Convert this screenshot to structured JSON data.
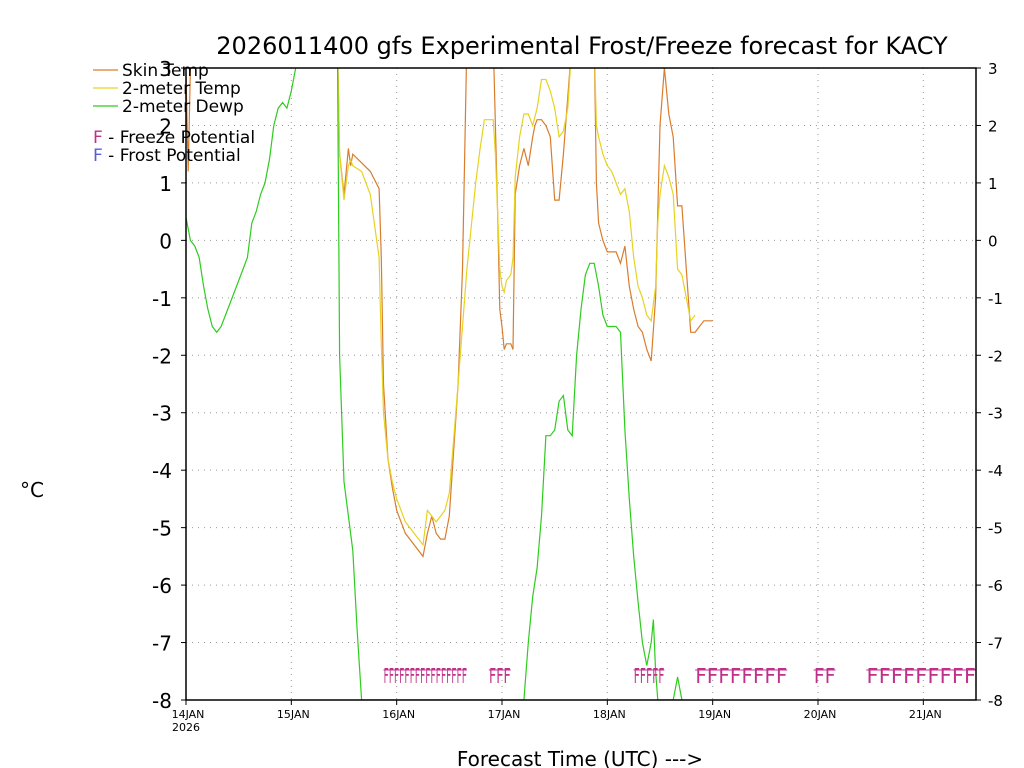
{
  "chart_data": {
    "type": "line",
    "title": "2026011400 gfs Experimental Frost/Freeze forecast for KACY",
    "xlabel": "Forecast Time (UTC) --->",
    "ylabel": "°C",
    "ylim": [
      -8,
      3
    ],
    "xlim_hours": [
      0,
      180
    ],
    "grid": true,
    "yticks": [
      "-8",
      "-7",
      "-6",
      "-5",
      "-4",
      "-3",
      "-2",
      "-1",
      "0",
      "1",
      "2",
      "3"
    ],
    "xticks": [
      {
        "label": "14JAN",
        "sub": "2026",
        "hour": 0
      },
      {
        "label": "15JAN",
        "sub": "",
        "hour": 24
      },
      {
        "label": "16JAN",
        "sub": "",
        "hour": 48
      },
      {
        "label": "17JAN",
        "sub": "",
        "hour": 72
      },
      {
        "label": "18JAN",
        "sub": "",
        "hour": 96
      },
      {
        "label": "19JAN",
        "sub": "",
        "hour": 120
      },
      {
        "label": "20JAN",
        "sub": "",
        "hour": 144
      },
      {
        "label": "21JAN",
        "sub": "",
        "hour": 168
      }
    ],
    "legend": [
      {
        "label": "Skin Temp",
        "color": "#d97d2d"
      },
      {
        "label": "2-meter Temp",
        "color": "#e6d320"
      },
      {
        "label": "2-meter Dewp",
        "color": "#2ecc1e"
      }
    ],
    "potential_legend": [
      {
        "letter": "F",
        "text": " - Freeze Potential",
        "color": "#c0308a"
      },
      {
        "letter": "F",
        "text": " - Frost Potential",
        "color": "#5a5adc"
      }
    ],
    "series": [
      {
        "name": "Skin Temp",
        "color": "#d97d2d",
        "x": [
          0,
          0.5,
          1,
          2,
          34.5,
          35,
          36,
          37,
          37.5,
          38,
          40,
          42,
          44,
          44.5,
          45,
          46,
          47,
          48,
          50,
          52,
          54,
          55,
          56,
          57,
          58,
          59,
          60,
          62,
          63,
          63.5,
          64,
          65,
          66,
          68,
          70,
          71,
          71.5,
          72,
          72.5,
          73,
          74,
          74.5,
          75,
          76,
          77,
          78,
          79,
          79.5,
          80,
          81,
          82,
          83,
          84,
          85,
          86,
          88,
          89,
          90,
          91,
          92,
          93,
          93.5,
          94,
          95,
          96,
          97,
          98,
          99,
          100,
          101,
          102,
          103,
          104,
          105,
          106,
          107,
          107.5,
          108,
          109,
          110,
          111,
          112,
          113,
          114,
          115,
          116,
          117,
          118,
          119,
          120
        ],
        "y": [
          2.9,
          1.2,
          3,
          3.5,
          3.5,
          1.5,
          0.8,
          1.6,
          1.3,
          1.5,
          1.35,
          1.2,
          0.9,
          -0.3,
          -2.5,
          -3.8,
          -4.3,
          -4.7,
          -5.1,
          -5.3,
          -5.5,
          -5.1,
          -4.8,
          -5.1,
          -5.2,
          -5.2,
          -4.8,
          -2.5,
          -0.5,
          1.5,
          3.5,
          3.5,
          3.5,
          3.5,
          3.5,
          0.5,
          -1.2,
          -1.5,
          -1.9,
          -1.8,
          -1.8,
          -1.9,
          0.8,
          1.3,
          1.6,
          1.3,
          1.8,
          2,
          2.1,
          2.1,
          2,
          1.8,
          0.7,
          0.7,
          1.5,
          3.5,
          3.5,
          3.5,
          3.5,
          3.5,
          3.5,
          1.0,
          0.3,
          0,
          -0.2,
          -0.2,
          -0.2,
          -0.4,
          -0.1,
          -0.8,
          -1.2,
          -1.5,
          -1.6,
          -1.9,
          -2.1,
          -1.0,
          0.5,
          2,
          3,
          2.2,
          1.8,
          0.6,
          0.6,
          -0.5,
          -1.6,
          -1.6,
          -1.5,
          -1.4,
          -1.4,
          -1.4
        ],
        "trace": false
      },
      {
        "name": "2-meter Temp",
        "color": "#e6d320",
        "x": [
          34.5,
          35,
          36,
          37,
          37.5,
          38,
          40,
          42,
          44,
          44.5,
          45,
          46,
          47,
          48,
          50,
          52,
          54,
          55,
          56,
          57,
          58,
          59,
          60,
          62,
          64,
          66,
          67,
          68,
          70,
          70.5,
          71,
          71.5,
          72,
          72.5,
          73,
          74,
          74.5,
          75,
          76,
          77,
          78,
          79,
          80,
          81,
          82,
          83,
          84,
          85,
          86,
          87,
          88,
          89,
          90,
          91,
          92,
          93,
          93.5,
          94,
          95,
          96,
          97,
          98,
          99,
          100,
          101,
          102,
          103,
          104,
          105,
          106,
          107,
          107.5,
          108,
          109,
          110,
          111,
          112,
          113,
          114,
          115,
          116
        ],
        "y": [
          3.5,
          1.5,
          0.7,
          1.3,
          1.4,
          1.3,
          1.2,
          0.8,
          -0.3,
          -1.8,
          -3.0,
          -3.8,
          -4.2,
          -4.5,
          -4.9,
          -5.1,
          -5.3,
          -4.7,
          -4.8,
          -4.9,
          -4.8,
          -4.7,
          -4.4,
          -2.5,
          -0.5,
          1.0,
          1.6,
          2.1,
          2.1,
          1.5,
          0.5,
          -0.5,
          -0.8,
          -0.9,
          -0.7,
          -0.6,
          -0.3,
          1.1,
          1.8,
          2.2,
          2.2,
          2.0,
          2.3,
          2.8,
          2.8,
          2.6,
          2.3,
          1.8,
          1.9,
          2.3,
          3.5,
          3.5,
          3.5,
          3.5,
          3.5,
          3.5,
          2.0,
          1.8,
          1.5,
          1.3,
          1.2,
          1.0,
          0.8,
          0.9,
          0.5,
          -0.3,
          -0.8,
          -1.0,
          -1.3,
          -1.4,
          -0.8,
          0.3,
          0.8,
          1.3,
          1.1,
          0.8,
          -0.5,
          -0.6,
          -1.0,
          -1.4,
          -1.3
        ],
        "trace": false
      },
      {
        "name": "2-meter Dewp",
        "color": "#2ecc1e",
        "x": [
          0,
          1,
          2,
          3,
          4,
          5,
          6,
          7,
          8,
          9,
          10,
          12,
          14,
          15,
          16,
          17,
          18,
          19,
          20,
          21,
          22,
          23,
          24,
          25,
          26,
          27,
          34.5,
          35,
          36,
          37,
          38,
          39,
          40,
          41,
          42,
          76,
          77,
          78,
          79,
          80,
          81,
          82,
          83,
          84,
          85,
          86,
          87,
          88,
          89,
          90,
          91,
          92,
          93,
          94,
          95,
          96,
          97,
          98,
          99,
          100,
          101,
          102,
          103,
          104,
          105,
          106,
          106.5,
          107,
          107.5,
          108,
          108.5,
          109,
          110,
          111,
          112,
          113
        ],
        "y": [
          0.4,
          0,
          -0.1,
          -0.3,
          -0.8,
          -1.2,
          -1.5,
          -1.6,
          -1.5,
          -1.3,
          -1.1,
          -0.7,
          -0.3,
          0.3,
          0.5,
          0.8,
          1.0,
          1.4,
          2.0,
          2.3,
          2.4,
          2.3,
          2.6,
          3.0,
          3.2,
          3.5,
          3.5,
          -2.0,
          -4.2,
          -4.8,
          -5.4,
          -6.8,
          -8.0,
          -8.0,
          -8.0,
          -8.0,
          -8.0,
          -7.0,
          -6.2,
          -5.7,
          -4.8,
          -3.4,
          -3.4,
          -3.3,
          -2.8,
          -2.7,
          -3.3,
          -3.4,
          -2.0,
          -1.2,
          -0.6,
          -0.4,
          -0.4,
          -0.8,
          -1.3,
          -1.5,
          -1.5,
          -1.5,
          -1.6,
          -3.3,
          -4.5,
          -5.5,
          -6.3,
          -7.0,
          -7.4,
          -7.0,
          -6.6,
          -7.5,
          -8.0,
          -8.0,
          -8.0,
          -8.0,
          -8.0,
          -8.0,
          -7.6,
          -8.0
        ],
        "trace": false
      }
    ],
    "freeze_markers": [
      {
        "hour_start": 45,
        "hour_end": 64,
        "letters": "FFFFFFFFFFFFFFFF",
        "color": "#c0308a"
      },
      {
        "hour_start": 69,
        "hour_end": 74,
        "letters": "FFF",
        "color": "#c0308a"
      },
      {
        "hour_start": 102,
        "hour_end": 109,
        "letters": "FFFFF",
        "color": "#c0308a"
      },
      {
        "hour_start": 116,
        "hour_end": 137,
        "letters": "FFFFFFFF",
        "color": "#c0308a"
      },
      {
        "hour_start": 143,
        "hour_end": 148,
        "letters": "FF",
        "color": "#c0308a"
      },
      {
        "hour_start": 155,
        "hour_end": 180,
        "letters": "FFFFFFFFF",
        "color": "#c0308a"
      }
    ]
  }
}
